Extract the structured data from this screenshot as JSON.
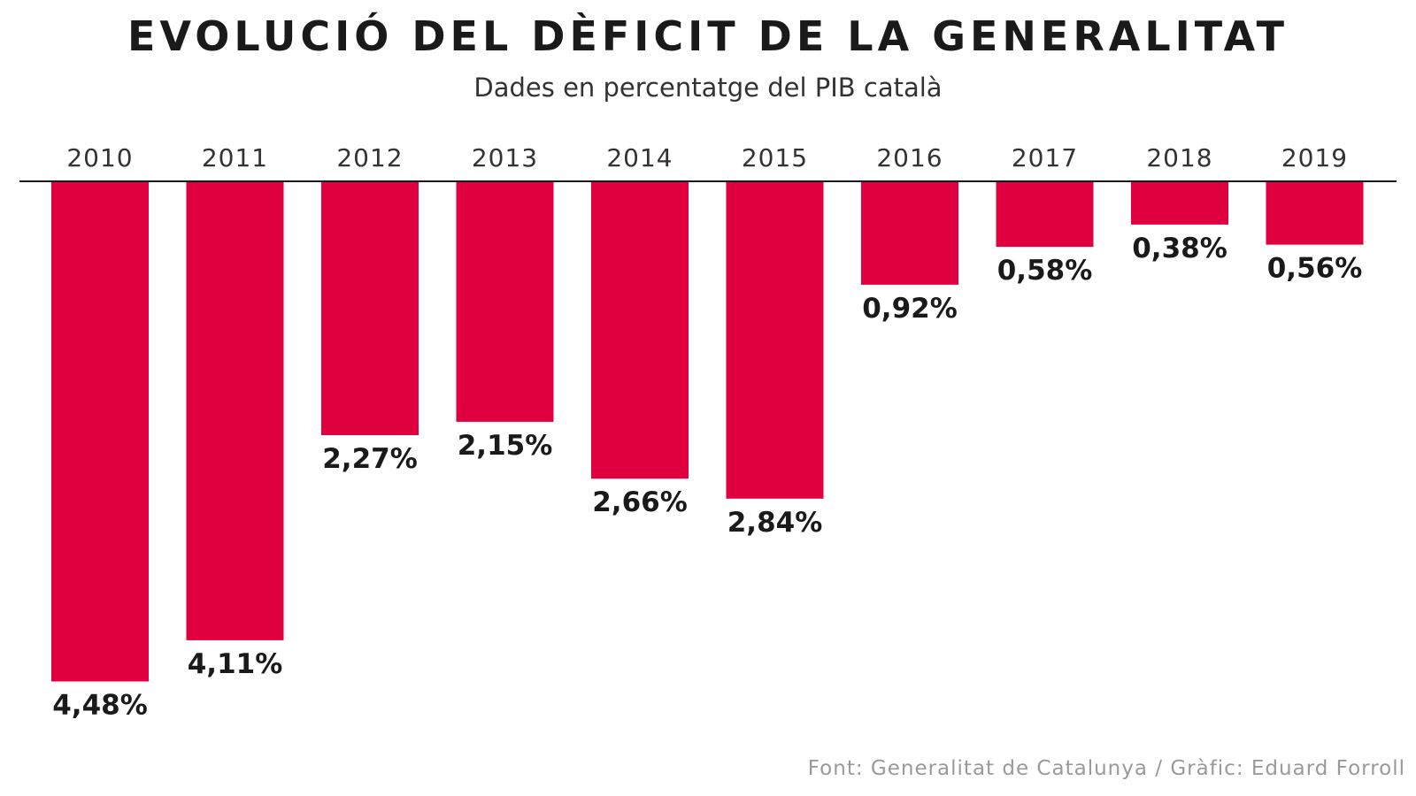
{
  "chart_data": {
    "type": "bar",
    "title": "EVOLUCIÓ DEL DÈFICIT DE LA GENERALITAT",
    "subtitle": "Dades en percentatge del PIB català",
    "categories": [
      "2010",
      "2011",
      "2012",
      "2013",
      "2014",
      "2015",
      "2016",
      "2017",
      "2018",
      "2019"
    ],
    "values": [
      4.48,
      4.11,
      2.27,
      2.15,
      2.66,
      2.84,
      0.92,
      0.58,
      0.38,
      0.56
    ],
    "data_labels": [
      "4,48%",
      "4,11%",
      "2,27%",
      "2,15%",
      "2,66%",
      "2,84%",
      "0,92%",
      "0,58%",
      "0,38%",
      "0,56%"
    ],
    "orientation": "downward from top axis",
    "xlabel": "",
    "ylabel": "",
    "ylim": [
      0,
      4.5
    ],
    "grid": false,
    "legend": "none",
    "bar_color": "#e0003f"
  },
  "source": "Font: Generalitat de Catalunya / Gràfic: Eduard Forroll"
}
